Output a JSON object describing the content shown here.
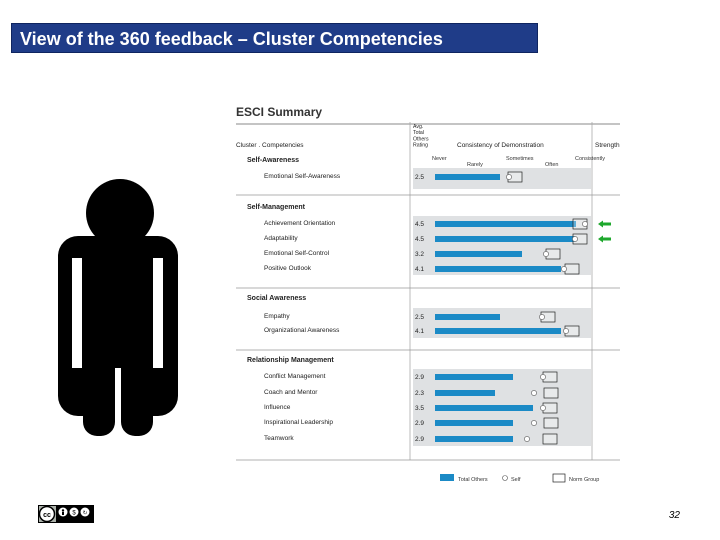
{
  "title": "View of the 360 feedback – Cluster Competencies",
  "report": {
    "heading": "ESCI Summary",
    "col_cluster": "Cluster . Competencies",
    "col_rating": [
      "Avg.",
      "Total",
      "Others",
      "Rating"
    ],
    "col_consistency": "Consistency of Demonstration",
    "col_strength": "Strength",
    "scale": [
      "Never",
      "Rarely",
      "Sometimes",
      "Often",
      "Consistently"
    ],
    "clusters": [
      {
        "name": "Self-Awareness",
        "items": [
          {
            "label": "Emotional Self-Awareness",
            "rating": "2.5",
            "bar": 0.43,
            "self": 0.49,
            "norm": 0.5,
            "strength": false
          }
        ]
      },
      {
        "name": "Self-Management",
        "items": [
          {
            "label": "Achievement Orientation",
            "rating": "4.5",
            "bar": 0.94,
            "self": 1.0,
            "norm": 0.93,
            "strength": true
          },
          {
            "label": "Adaptability",
            "rating": "4.5",
            "bar": 0.93,
            "self": 0.93,
            "norm": 0.93,
            "strength": true
          },
          {
            "label": "Emotional Self-Control",
            "rating": "3.2",
            "bar": 0.58,
            "self": 0.74,
            "norm": 0.75,
            "strength": false
          },
          {
            "label": "Positive Outlook",
            "rating": "4.1",
            "bar": 0.84,
            "self": 0.86,
            "norm": 0.88,
            "strength": false
          }
        ]
      },
      {
        "name": "Social Awareness",
        "items": [
          {
            "label": "Empathy",
            "rating": "2.5",
            "bar": 0.43,
            "self": 0.71,
            "norm": 0.72,
            "strength": false
          },
          {
            "label": "Organizational Awareness",
            "rating": "4.1",
            "bar": 0.84,
            "self": 0.87,
            "norm": 0.88,
            "strength": false
          }
        ]
      },
      {
        "name": "Relationship Management",
        "items": [
          {
            "label": "Conflict Management",
            "rating": "2.9",
            "bar": 0.52,
            "self": 0.72,
            "norm": 0.73,
            "strength": false
          },
          {
            "label": "Coach and Mentor",
            "rating": "2.3",
            "bar": 0.4,
            "self": 0.66,
            "norm": 0.74,
            "strength": false
          },
          {
            "label": "Influence",
            "rating": "3.5",
            "bar": 0.65,
            "self": 0.72,
            "norm": 0.73,
            "strength": false
          },
          {
            "label": "Inspirational Leadership",
            "rating": "2.9",
            "bar": 0.52,
            "self": 0.66,
            "norm": 0.74,
            "strength": false
          },
          {
            "label": "Teamwork",
            "rating": "2.9",
            "bar": 0.52,
            "self": 0.61,
            "norm": 0.73,
            "strength": false
          }
        ]
      }
    ],
    "legend": {
      "total_others": "Total Others",
      "self": "Self",
      "norm": "Norm Group"
    }
  },
  "colors": {
    "title_bg": "#1f3c88",
    "bar": "#1b8ac6",
    "strength_arrow": "#1ea82d",
    "row_shade": "#dfe1e3"
  },
  "license_icons": [
    "cc-icon",
    "by-icon",
    "nc-icon",
    "sa-icon"
  ],
  "page_number": "32"
}
